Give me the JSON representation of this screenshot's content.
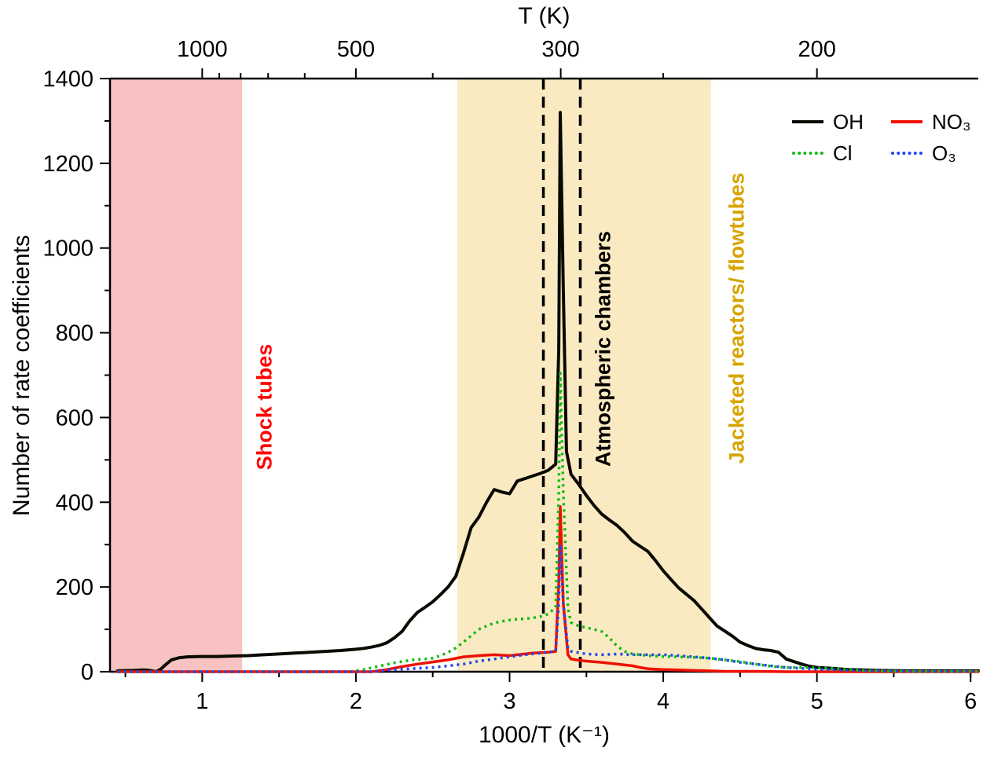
{
  "figure": {
    "top_axis_title": "T (K)",
    "x_axis_title": "1000/T (K⁻¹)",
    "y_axis_title": "Number of rate coefficients"
  },
  "annotations": {
    "shock_tubes": {
      "label": "Shock tubes",
      "color": "#ff0000"
    },
    "atmospheric_chambers": {
      "label": "Atmospheric chambers",
      "color": "#000000"
    },
    "jacketed_reactors": {
      "label": "Jacketed reactors/ flowtubes",
      "color": "#d8a400"
    }
  },
  "chart_data": {
    "type": "line",
    "title": "",
    "xlabel": "1000/T (K⁻¹)",
    "ylabel": "Number of rate coefficients",
    "xlim": [
      0.4,
      6.05
    ],
    "ylim": [
      0,
      1400
    ],
    "xticks": [
      1,
      2,
      3,
      4,
      5,
      6
    ],
    "xticks_minor": [
      0.5,
      1.5,
      2.5,
      3.5,
      4.5,
      5.5,
      6.0
    ],
    "yticks": [
      0,
      200,
      400,
      600,
      800,
      1000,
      1200,
      1400
    ],
    "yticks_minor": [
      100,
      300,
      500,
      700,
      900,
      1100,
      1300
    ],
    "grid": false,
    "legend_position": "top-right",
    "top_axis": {
      "label": "T (K)",
      "major_ticks": [
        {
          "label": "1000",
          "x": 1.0
        },
        {
          "label": "500",
          "x": 2.0
        },
        {
          "label": "300",
          "x": 3.333
        },
        {
          "label": "200",
          "x": 5.0
        }
      ],
      "minor_ticks": [
        1.111,
        1.25,
        1.429,
        1.667,
        2.5,
        4.0
      ]
    },
    "regions": [
      {
        "name": "shock-tubes-region",
        "label": "Shock tubes",
        "x0": 0.4,
        "x1": 1.26,
        "fill": "#f8c2c2",
        "label_color": "#ff0000"
      },
      {
        "name": "jacketed-reactors-region",
        "label": "Jacketed reactors/ flowtubes",
        "x0": 2.66,
        "x1": 4.31,
        "fill": "#faeac2",
        "label_color": "#d8a400"
      }
    ],
    "vlines": {
      "x": [
        3.22,
        3.46
      ],
      "label": "Atmospheric chambers",
      "color": "#000000",
      "style": "dashed"
    },
    "series": [
      {
        "name": "OH",
        "color": "#0a0a00",
        "style": "solid",
        "points": [
          [
            0.45,
            2
          ],
          [
            0.55,
            3
          ],
          [
            0.62,
            4
          ],
          [
            0.66,
            3
          ],
          [
            0.7,
            0
          ],
          [
            0.73,
            6
          ],
          [
            0.76,
            16
          ],
          [
            0.8,
            28
          ],
          [
            0.85,
            33
          ],
          [
            0.9,
            35
          ],
          [
            1.0,
            36
          ],
          [
            1.1,
            36
          ],
          [
            1.2,
            37
          ],
          [
            1.3,
            38
          ],
          [
            1.4,
            40
          ],
          [
            1.5,
            42
          ],
          [
            1.6,
            44
          ],
          [
            1.7,
            46
          ],
          [
            1.8,
            48
          ],
          [
            1.9,
            50
          ],
          [
            2.0,
            53
          ],
          [
            2.05,
            55
          ],
          [
            2.1,
            58
          ],
          [
            2.15,
            62
          ],
          [
            2.2,
            68
          ],
          [
            2.25,
            80
          ],
          [
            2.3,
            95
          ],
          [
            2.35,
            120
          ],
          [
            2.4,
            140
          ],
          [
            2.45,
            152
          ],
          [
            2.5,
            165
          ],
          [
            2.55,
            182
          ],
          [
            2.6,
            200
          ],
          [
            2.65,
            225
          ],
          [
            2.7,
            280
          ],
          [
            2.75,
            340
          ],
          [
            2.8,
            365
          ],
          [
            2.85,
            400
          ],
          [
            2.9,
            430
          ],
          [
            2.95,
            424
          ],
          [
            3.0,
            420
          ],
          [
            3.05,
            450
          ],
          [
            3.1,
            456
          ],
          [
            3.15,
            462
          ],
          [
            3.2,
            468
          ],
          [
            3.25,
            475
          ],
          [
            3.3,
            490
          ],
          [
            3.32,
            760
          ],
          [
            3.33,
            1320
          ],
          [
            3.35,
            900
          ],
          [
            3.37,
            520
          ],
          [
            3.4,
            466
          ],
          [
            3.45,
            442
          ],
          [
            3.5,
            416
          ],
          [
            3.55,
            392
          ],
          [
            3.6,
            372
          ],
          [
            3.65,
            358
          ],
          [
            3.7,
            345
          ],
          [
            3.75,
            328
          ],
          [
            3.8,
            308
          ],
          [
            3.85,
            296
          ],
          [
            3.9,
            284
          ],
          [
            3.95,
            262
          ],
          [
            4.0,
            238
          ],
          [
            4.05,
            218
          ],
          [
            4.1,
            198
          ],
          [
            4.15,
            183
          ],
          [
            4.2,
            168
          ],
          [
            4.25,
            148
          ],
          [
            4.3,
            128
          ],
          [
            4.35,
            108
          ],
          [
            4.4,
            96
          ],
          [
            4.45,
            84
          ],
          [
            4.5,
            70
          ],
          [
            4.55,
            62
          ],
          [
            4.6,
            55
          ],
          [
            4.65,
            52
          ],
          [
            4.7,
            50
          ],
          [
            4.75,
            46
          ],
          [
            4.8,
            30
          ],
          [
            4.85,
            24
          ],
          [
            4.9,
            18
          ],
          [
            4.95,
            13
          ],
          [
            5.0,
            10
          ],
          [
            5.1,
            8
          ],
          [
            5.2,
            5
          ],
          [
            5.3,
            4
          ],
          [
            5.4,
            3
          ],
          [
            5.6,
            2
          ],
          [
            5.8,
            2
          ],
          [
            6.05,
            2
          ]
        ]
      },
      {
        "name": "NO₃",
        "color": "#ee1100",
        "style": "solid",
        "points": [
          [
            0.45,
            0
          ],
          [
            2.1,
            0
          ],
          [
            2.2,
            5
          ],
          [
            2.3,
            12
          ],
          [
            2.4,
            18
          ],
          [
            2.5,
            23
          ],
          [
            2.6,
            28
          ],
          [
            2.7,
            35
          ],
          [
            2.8,
            38
          ],
          [
            2.9,
            40
          ],
          [
            3.0,
            38
          ],
          [
            3.1,
            42
          ],
          [
            3.15,
            44
          ],
          [
            3.2,
            45
          ],
          [
            3.25,
            46
          ],
          [
            3.3,
            48
          ],
          [
            3.32,
            210
          ],
          [
            3.33,
            390
          ],
          [
            3.35,
            160
          ],
          [
            3.38,
            40
          ],
          [
            3.4,
            30
          ],
          [
            3.45,
            27
          ],
          [
            3.5,
            25
          ],
          [
            3.6,
            22
          ],
          [
            3.7,
            18
          ],
          [
            3.8,
            14
          ],
          [
            3.85,
            10
          ],
          [
            3.9,
            7
          ],
          [
            4.0,
            5
          ],
          [
            4.1,
            4
          ],
          [
            4.2,
            3
          ],
          [
            4.3,
            2
          ],
          [
            4.4,
            1
          ],
          [
            4.6,
            1
          ],
          [
            4.8,
            0
          ],
          [
            6.05,
            0
          ]
        ]
      },
      {
        "name": "Cl",
        "color": "#11bb11",
        "style": "dotted",
        "points": [
          [
            0.45,
            0
          ],
          [
            1.95,
            0
          ],
          [
            2.0,
            2
          ],
          [
            2.05,
            5
          ],
          [
            2.1,
            9
          ],
          [
            2.15,
            13
          ],
          [
            2.2,
            17
          ],
          [
            2.25,
            21
          ],
          [
            2.3,
            24
          ],
          [
            2.35,
            27
          ],
          [
            2.4,
            29
          ],
          [
            2.45,
            30
          ],
          [
            2.5,
            32
          ],
          [
            2.55,
            38
          ],
          [
            2.6,
            46
          ],
          [
            2.65,
            56
          ],
          [
            2.7,
            70
          ],
          [
            2.75,
            85
          ],
          [
            2.8,
            100
          ],
          [
            2.85,
            108
          ],
          [
            2.9,
            115
          ],
          [
            2.95,
            119
          ],
          [
            3.0,
            122
          ],
          [
            3.05,
            124
          ],
          [
            3.1,
            125
          ],
          [
            3.15,
            127
          ],
          [
            3.2,
            130
          ],
          [
            3.25,
            136
          ],
          [
            3.3,
            152
          ],
          [
            3.32,
            420
          ],
          [
            3.33,
            705
          ],
          [
            3.35,
            420
          ],
          [
            3.38,
            150
          ],
          [
            3.4,
            116
          ],
          [
            3.45,
            108
          ],
          [
            3.5,
            104
          ],
          [
            3.55,
            100
          ],
          [
            3.6,
            95
          ],
          [
            3.65,
            80
          ],
          [
            3.7,
            60
          ],
          [
            3.75,
            48
          ],
          [
            3.8,
            42
          ],
          [
            3.85,
            40
          ],
          [
            3.9,
            38
          ],
          [
            4.0,
            36
          ],
          [
            4.1,
            35
          ],
          [
            4.2,
            34
          ],
          [
            4.3,
            32
          ],
          [
            4.4,
            28
          ],
          [
            4.5,
            24
          ],
          [
            4.6,
            18
          ],
          [
            4.7,
            13
          ],
          [
            4.8,
            10
          ],
          [
            4.9,
            10
          ],
          [
            5.0,
            9
          ],
          [
            5.1,
            8
          ],
          [
            5.2,
            5
          ],
          [
            5.3,
            3
          ],
          [
            5.4,
            2
          ],
          [
            5.6,
            1
          ],
          [
            6.05,
            1
          ]
        ]
      },
      {
        "name": "O₃",
        "color": "#2244ee",
        "style": "dotted",
        "points": [
          [
            0.45,
            0
          ],
          [
            2.1,
            0
          ],
          [
            2.2,
            4
          ],
          [
            2.3,
            6
          ],
          [
            2.4,
            8
          ],
          [
            2.5,
            10
          ],
          [
            2.6,
            14
          ],
          [
            2.7,
            18
          ],
          [
            2.8,
            25
          ],
          [
            2.9,
            30
          ],
          [
            3.0,
            35
          ],
          [
            3.1,
            40
          ],
          [
            3.2,
            44
          ],
          [
            3.3,
            48
          ],
          [
            3.32,
            160
          ],
          [
            3.33,
            300
          ],
          [
            3.35,
            160
          ],
          [
            3.38,
            55
          ],
          [
            3.4,
            48
          ],
          [
            3.45,
            45
          ],
          [
            3.5,
            42
          ],
          [
            3.6,
            40
          ],
          [
            3.7,
            42
          ],
          [
            3.8,
            40
          ],
          [
            3.9,
            40
          ],
          [
            4.0,
            40
          ],
          [
            4.1,
            38
          ],
          [
            4.2,
            35
          ],
          [
            4.3,
            32
          ],
          [
            4.4,
            28
          ],
          [
            4.5,
            22
          ],
          [
            4.6,
            18
          ],
          [
            4.7,
            14
          ],
          [
            4.8,
            10
          ],
          [
            4.9,
            8
          ],
          [
            5.0,
            6
          ],
          [
            5.1,
            5
          ],
          [
            5.2,
            3
          ],
          [
            5.4,
            2
          ],
          [
            5.6,
            1
          ],
          [
            6.05,
            1
          ]
        ]
      }
    ]
  }
}
